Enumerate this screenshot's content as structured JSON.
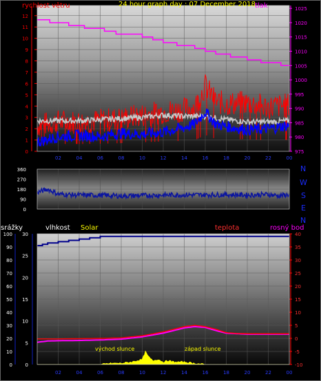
{
  "header": {
    "title": "24 hour graph day : 07 December 2018",
    "wind_label": "rychlost větru",
    "pressure_label": "tlak"
  },
  "colors": {
    "wind_gust": "#ff0000",
    "wind_avg": "#0000ff",
    "wind_overlay": "#c8c8c8",
    "pressure": "#ff00ff",
    "direction": "#0a14a0",
    "humidity": "#00008b",
    "temperature": "#ff0000",
    "dew_point": "#ff00ff",
    "solar": "#ffff00",
    "title": "#ffff00"
  },
  "compass": [
    "N",
    "W",
    "S",
    "E",
    "N"
  ],
  "bottom_labels": {
    "rain": "srážky",
    "humidity": "vlhkost",
    "solar": "Solar",
    "temperature": "teplota",
    "dew_point": "rosný bod",
    "sunrise": "východ slunce",
    "sunset": "západ slunce"
  },
  "chart_data": [
    {
      "type": "line",
      "name_ref": "wind-pressure",
      "xlabels": [
        "02",
        "04",
        "06",
        "08",
        "10",
        "12",
        "14",
        "16",
        "18",
        "20",
        "22",
        "00"
      ],
      "wind_ticks": [
        0,
        1,
        2,
        3,
        4,
        5,
        6,
        7,
        8,
        9,
        10,
        11,
        12
      ],
      "pressure_ticks": [
        975,
        980,
        985,
        990,
        995,
        1000,
        1005,
        1010,
        1015,
        1020,
        1025
      ],
      "ylim_wind": [
        0,
        12.9
      ],
      "ylim_pressure": [
        975,
        1026
      ],
      "pressure": {
        "x": [
          0,
          0.6,
          1.2,
          2.5,
          3,
          3.6,
          4.5,
          5.5,
          6.4,
          7.5,
          9,
          10,
          11,
          12,
          13.3,
          14,
          15,
          16,
          17,
          17.7,
          18.4,
          19,
          20,
          20.8,
          21.3,
          22.2,
          23.2,
          24
        ],
        "y": [
          1021,
          1021,
          1020,
          1020,
          1019,
          1019,
          1018,
          1018,
          1017,
          1016,
          1016,
          1015,
          1014,
          1013,
          1012,
          1012,
          1011,
          1010,
          1009,
          1009,
          1008,
          1008,
          1007,
          1007,
          1006,
          1006,
          1005,
          1005
        ]
      },
      "wind_avg": {
        "x": [
          0,
          2,
          4,
          6,
          8,
          10,
          12,
          14,
          15,
          16,
          17,
          18,
          20,
          22,
          24
        ],
        "y": [
          0.8,
          1.3,
          1.4,
          1.3,
          1.6,
          1.5,
          1.7,
          2.1,
          2.4,
          3.5,
          2.4,
          2.2,
          1.9,
          2.0,
          2.3
        ]
      },
      "wind_gust": {
        "x": [
          0,
          2,
          4,
          6,
          8,
          10,
          12,
          14,
          15,
          16,
          17,
          18,
          20,
          22,
          24
        ],
        "y": [
          2.3,
          2.6,
          2.6,
          2.7,
          2.9,
          3.2,
          3.5,
          3.7,
          3.9,
          5.8,
          4.4,
          4.2,
          4.3,
          3.9,
          4.1
        ]
      },
      "wind_overlay": {
        "x": [
          0,
          2,
          4,
          6,
          8,
          10,
          12,
          14,
          16,
          18,
          20,
          22,
          24
        ],
        "y": [
          2.7,
          2.7,
          2.7,
          2.8,
          2.9,
          3.0,
          3.2,
          3.1,
          3.1,
          2.8,
          2.6,
          2.6,
          2.7
        ]
      }
    },
    {
      "type": "line",
      "name_ref": "wind-direction",
      "ylim": [
        0,
        360
      ],
      "yticks": [
        0,
        90,
        180,
        270,
        360
      ],
      "ytick_labels": [
        "0",
        "90",
        "180",
        "270",
        "360"
      ],
      "direction": {
        "x": [
          0,
          1,
          2,
          4,
          6,
          8,
          10,
          12,
          14,
          16,
          18,
          20,
          22,
          23,
          24
        ],
        "y": [
          150,
          180,
          135,
          125,
          125,
          118,
          122,
          126,
          128,
          128,
          130,
          126,
          132,
          120,
          130
        ]
      }
    },
    {
      "type": "line",
      "name_ref": "humidity-temperature",
      "rain_ticks": [
        0,
        10,
        20,
        30,
        40,
        50,
        60,
        70,
        80,
        90,
        100
      ],
      "mm_ticks": [
        0,
        5,
        10,
        15,
        20,
        25,
        30
      ],
      "temp_ticks": [
        -10,
        -5,
        0,
        5,
        10,
        15,
        20,
        25,
        30,
        35,
        40
      ],
      "ylim_humidity": [
        0,
        100
      ],
      "ylim_temp": [
        -10,
        40
      ],
      "humidity": {
        "x": [
          0,
          0.5,
          1,
          2,
          3,
          4,
          5,
          6,
          7,
          8,
          10,
          12,
          14,
          16,
          18,
          20,
          22,
          24
        ],
        "y": [
          91,
          92,
          93,
          94,
          95,
          96,
          97,
          98,
          98,
          98,
          98,
          98,
          98,
          98,
          98,
          98,
          98,
          98
        ]
      },
      "temperature": {
        "x": [
          0,
          2,
          4,
          6,
          8,
          10,
          12,
          14,
          15,
          16,
          17,
          18,
          19,
          20,
          22,
          24
        ],
        "y": [
          -0.2,
          -0.2,
          -0.1,
          0,
          0.2,
          1.0,
          2.5,
          4.5,
          5.0,
          4.5,
          3.5,
          2.2,
          1.9,
          1.8,
          1.8,
          1.8
        ]
      },
      "dew_point": {
        "x": [
          0,
          1,
          2,
          4,
          6,
          8,
          10,
          12,
          14,
          15,
          16,
          17,
          18,
          20,
          22,
          24
        ],
        "y": [
          -1.5,
          -1.0,
          -0.9,
          -0.8,
          -0.6,
          -0.3,
          0.6,
          2.0,
          4.0,
          4.5,
          4.2,
          3.0,
          2.0,
          1.6,
          1.6,
          1.6
        ]
      },
      "solar": {
        "x": [
          0,
          6,
          7,
          8,
          9,
          10,
          10.3,
          10.6,
          11,
          11.5,
          12,
          12.5,
          13,
          14,
          15,
          16,
          24
        ],
        "y": [
          0,
          0,
          1,
          1,
          2,
          4,
          10,
          6,
          3,
          4,
          2,
          3,
          2,
          2,
          1,
          0,
          0
        ]
      }
    }
  ]
}
